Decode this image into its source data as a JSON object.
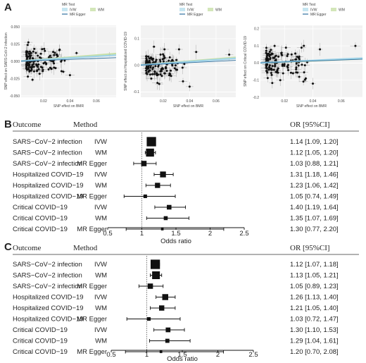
{
  "panels": {
    "a": "A",
    "b": "B",
    "c": "C"
  },
  "scatter_legend": {
    "title": "MR Test",
    "items": [
      "IVW",
      "WM",
      "MR Egger"
    ]
  },
  "colors": {
    "ivw": "#9fd3e8",
    "wm": "#c8e0a8",
    "egger": "#2f6f9e",
    "grid": "#e3e3e3",
    "panel_bg": "#f2f2f2",
    "ref_line": "#555555"
  },
  "chart_data": [
    {
      "type": "scatter",
      "title": "",
      "xlabel": "SNP effect on BMR",
      "ylabel": "SNP effect on SARS-CoV-2 infection",
      "xlim": [
        0.003,
        0.075
      ],
      "ylim": [
        -0.052,
        0.052
      ],
      "xticks": [
        "0.02",
        "0.04",
        "0.06"
      ],
      "yticks": [
        "-0.050",
        "-0.025",
        "0.000",
        "0.025",
        "0.050"
      ],
      "xtick_values": [
        0.02,
        0.04,
        0.06
      ],
      "ytick_values": [
        -0.05,
        -0.025,
        0,
        0.025,
        0.05
      ],
      "points": [
        [
          0.012,
          0.004
        ],
        [
          0.015,
          -0.006
        ],
        [
          0.018,
          0.011
        ],
        [
          0.022,
          -0.003
        ],
        [
          0.025,
          0.008
        ],
        [
          0.011,
          -0.012
        ],
        [
          0.014,
          0.002
        ],
        [
          0.019,
          -0.009
        ],
        [
          0.03,
          0.005
        ],
        [
          0.035,
          -0.015
        ],
        [
          0.045,
          0.012
        ],
        [
          0.07,
          0.01
        ],
        [
          0.04,
          -0.02
        ],
        [
          0.013,
          0.018
        ],
        [
          0.017,
          -0.018
        ],
        [
          0.021,
          0.015
        ],
        [
          0.026,
          -0.011
        ],
        [
          0.028,
          0.002
        ],
        [
          0.032,
          0.016
        ],
        [
          0.036,
          0.001
        ]
      ],
      "lines": {
        "ivw": [
          0.0,
          0.12
        ],
        "wm": [
          0.0,
          0.15
        ],
        "egger": [
          0.0,
          0.07
        ]
      }
    },
    {
      "type": "scatter",
      "title": "",
      "xlabel": "SNP effect on BMR",
      "ylabel": "SNP effect on Hospitalized COVID-19",
      "xlim": [
        0.003,
        0.075
      ],
      "ylim": [
        -0.12,
        0.15
      ],
      "xticks": [
        "0.02",
        "0.04",
        "0.06"
      ],
      "yticks": [
        "-0.1",
        "0.0",
        "0.1"
      ],
      "xtick_values": [
        0.02,
        0.04,
        0.06
      ],
      "ytick_values": [
        -0.1,
        0,
        0.1
      ],
      "points": [
        [
          0.012,
          0.02
        ],
        [
          0.015,
          -0.03
        ],
        [
          0.018,
          0.04
        ],
        [
          0.022,
          -0.01
        ],
        [
          0.025,
          0.03
        ],
        [
          0.011,
          -0.05
        ],
        [
          0.014,
          0.01
        ],
        [
          0.019,
          -0.04
        ],
        [
          0.03,
          0.02
        ],
        [
          0.035,
          -0.06
        ],
        [
          0.045,
          0.05
        ],
        [
          0.07,
          0.04
        ],
        [
          0.04,
          -0.08
        ],
        [
          0.013,
          0.07
        ],
        [
          0.017,
          -0.07
        ],
        [
          0.021,
          0.06
        ],
        [
          0.026,
          -0.04
        ],
        [
          0.028,
          0.01
        ],
        [
          0.032,
          0.06
        ],
        [
          0.036,
          0.005
        ]
      ],
      "lines": {
        "ivw": [
          0.0,
          0.35
        ],
        "wm": [
          0.0,
          0.4
        ],
        "egger": [
          0.0,
          0.25
        ]
      }
    },
    {
      "type": "scatter",
      "title": "",
      "xlabel": "SNP effect on BMR",
      "ylabel": "SNP effect on Critical COVID-19",
      "xlim": [
        0.003,
        0.075
      ],
      "ylim": [
        -0.2,
        0.22
      ],
      "xticks": [
        "0.02",
        "0.04",
        "0.06"
      ],
      "yticks": [
        "-0.2",
        "-0.1",
        "0.0",
        "0.1",
        "0.2"
      ],
      "xtick_values": [
        0.02,
        0.04,
        0.06
      ],
      "ytick_values": [
        -0.2,
        -0.1,
        0,
        0.1,
        0.2
      ],
      "points": [
        [
          0.012,
          0.03
        ],
        [
          0.015,
          -0.04
        ],
        [
          0.018,
          0.06
        ],
        [
          0.022,
          -0.02
        ],
        [
          0.025,
          0.05
        ],
        [
          0.011,
          -0.07
        ],
        [
          0.014,
          0.02
        ],
        [
          0.019,
          -0.06
        ],
        [
          0.03,
          0.03
        ],
        [
          0.035,
          -0.09
        ],
        [
          0.045,
          0.08
        ],
        [
          0.07,
          0.1
        ],
        [
          0.04,
          -0.12
        ],
        [
          0.013,
          0.1
        ],
        [
          0.017,
          -0.1
        ],
        [
          0.021,
          0.09
        ],
        [
          0.026,
          -0.06
        ],
        [
          0.028,
          0.01
        ],
        [
          0.032,
          0.09
        ],
        [
          0.036,
          0.005
        ]
      ],
      "lines": {
        "ivw": [
          0.0,
          0.38
        ],
        "wm": [
          0.0,
          0.33
        ],
        "egger": [
          0.0,
          0.3
        ]
      }
    },
    {
      "type": "forest",
      "headers": {
        "outcome": "Outcome",
        "method": "Method",
        "or": "OR [95%CI]"
      },
      "xlabel": "Odds ratio",
      "xlim": [
        0.5,
        2.5
      ],
      "xticks": [
        0.5,
        1,
        1.5,
        2,
        2.5
      ],
      "xtick_labels": [
        "0.5",
        "1",
        "1.5",
        "2",
        "2.5"
      ],
      "ref": 1,
      "rows": [
        {
          "outcome": "SARS−CoV−2 infection",
          "method": "IVW",
          "or": 1.14,
          "lo": 1.09,
          "hi": 1.2,
          "label": "1.14 [1.09, 1.20]"
        },
        {
          "outcome": "SARS−CoV−2 infection",
          "method": "WM",
          "or": 1.12,
          "lo": 1.05,
          "hi": 1.2,
          "label": "1.12 [1.05, 1.20]"
        },
        {
          "outcome": "SARS−CoV−2 infection",
          "method": "MR Egger",
          "or": 1.03,
          "lo": 0.88,
          "hi": 1.21,
          "label": "1.03 [0.88, 1.21]"
        },
        {
          "outcome": "Hospitalized COVID−19",
          "method": "IVW",
          "or": 1.31,
          "lo": 1.18,
          "hi": 1.46,
          "label": "1.31 [1.18, 1.46]"
        },
        {
          "outcome": "Hospitalized COVID−19",
          "method": "WM",
          "or": 1.23,
          "lo": 1.06,
          "hi": 1.42,
          "label": "1.23 [1.06, 1.42]"
        },
        {
          "outcome": "Hospitalized COVID−19",
          "method": "MR Egger",
          "or": 1.05,
          "lo": 0.74,
          "hi": 1.49,
          "label": "1.05 [0.74, 1.49]"
        },
        {
          "outcome": "Critical COVID−19",
          "method": "IVW",
          "or": 1.4,
          "lo": 1.19,
          "hi": 1.64,
          "label": "1.40 [1.19, 1.64]"
        },
        {
          "outcome": "Critical COVID−19",
          "method": "WM",
          "or": 1.35,
          "lo": 1.07,
          "hi": 1.69,
          "label": "1.35 [1.07, 1.69]"
        },
        {
          "outcome": "Critical COVID−19",
          "method": "MR Egger",
          "or": 1.3,
          "lo": 0.77,
          "hi": 2.2,
          "label": "1.30 [0.77, 2.20]"
        }
      ]
    },
    {
      "type": "forest",
      "headers": {
        "outcome": "Outcome",
        "method": "Method",
        "or": "OR [95%CI]"
      },
      "xlabel": "Odds ratio",
      "xlim": [
        0.5,
        2.5
      ],
      "xticks": [
        0.5,
        1,
        1.5,
        2,
        2.5
      ],
      "xtick_labels": [
        "0.5",
        "1",
        "1.5",
        "2",
        "2.5"
      ],
      "ref": 1,
      "rows": [
        {
          "outcome": "SARS−CoV−2 infection",
          "method": "IVW",
          "or": 1.12,
          "lo": 1.07,
          "hi": 1.18,
          "label": "1.12 [1.07, 1.18]"
        },
        {
          "outcome": "SARS−CoV−2 infection",
          "method": "WM",
          "or": 1.13,
          "lo": 1.05,
          "hi": 1.21,
          "label": "1.13 [1.05, 1.21]"
        },
        {
          "outcome": "SARS−CoV−2 infection",
          "method": "MR Egger",
          "or": 1.05,
          "lo": 0.89,
          "hi": 1.23,
          "label": "1.05 [0.89, 1.23]"
        },
        {
          "outcome": "Hospitalized COVID−19",
          "method": "IVW",
          "or": 1.26,
          "lo": 1.13,
          "hi": 1.4,
          "label": "1.26 [1.13, 1.40]"
        },
        {
          "outcome": "Hospitalized COVID−19",
          "method": "WM",
          "or": 1.21,
          "lo": 1.05,
          "hi": 1.4,
          "label": "1.21 [1.05, 1.40]"
        },
        {
          "outcome": "Hospitalized COVID−19",
          "method": "MR Egger",
          "or": 1.03,
          "lo": 0.72,
          "hi": 1.47,
          "label": "1.03 [0.72, 1.47]"
        },
        {
          "outcome": "Critical COVID−19",
          "method": "IVW",
          "or": 1.3,
          "lo": 1.1,
          "hi": 1.53,
          "label": "1.30 [1.10, 1.53]"
        },
        {
          "outcome": "Critical COVID−19",
          "method": "WM",
          "or": 1.29,
          "lo": 1.04,
          "hi": 1.61,
          "label": "1.29 [1.04, 1.61]"
        },
        {
          "outcome": "Critical COVID−19",
          "method": "MR Egger",
          "or": 1.2,
          "lo": 0.7,
          "hi": 2.08,
          "label": "1.20 [0.70, 2.08]"
        }
      ]
    }
  ]
}
